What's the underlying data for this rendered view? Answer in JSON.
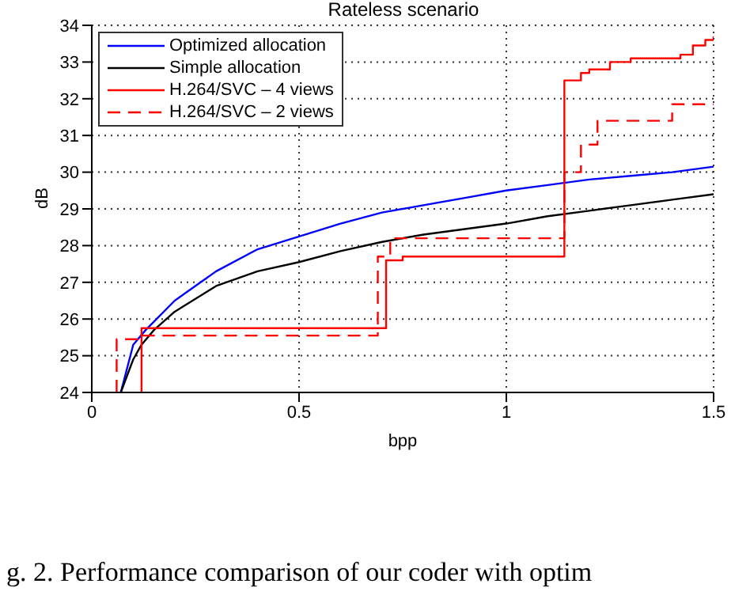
{
  "chart_data": {
    "type": "line",
    "title": "Rateless scenario",
    "xlabel": "bpp",
    "ylabel": "dB",
    "xlim": [
      0,
      1.5
    ],
    "ylim": [
      24,
      34
    ],
    "xticks": [
      0,
      0.5,
      1,
      1.5
    ],
    "yticks": [
      24,
      25,
      26,
      27,
      28,
      29,
      30,
      31,
      32,
      33,
      34
    ],
    "grid": true,
    "legend": "top left",
    "marker": "none",
    "annotations": [
      "g. 2. Performance comparison of our coder with optim"
    ],
    "series": [
      {
        "name": "Optimized allocation",
        "color": "#0000ff",
        "line_style": "solid",
        "x": [
          0.07,
          0.1,
          0.13,
          0.2,
          0.3,
          0.4,
          0.5,
          0.6,
          0.7,
          0.8,
          0.9,
          1.0,
          1.1,
          1.2,
          1.3,
          1.4,
          1.5
        ],
        "values": [
          24,
          25.3,
          25.7,
          26.5,
          27.3,
          27.9,
          28.25,
          28.6,
          28.9,
          29.1,
          29.3,
          29.5,
          29.65,
          29.8,
          29.9,
          30.0,
          30.15
        ]
      },
      {
        "name": "Simple allocation",
        "color": "#000000",
        "line_style": "solid",
        "x": [
          0.07,
          0.08,
          0.1,
          0.12,
          0.15,
          0.2,
          0.3,
          0.4,
          0.5,
          0.6,
          0.7,
          0.8,
          0.9,
          1.0,
          1.1,
          1.2,
          1.3,
          1.4,
          1.5
        ],
        "values": [
          24,
          24.3,
          24.9,
          25.3,
          25.7,
          26.2,
          26.9,
          27.3,
          27.55,
          27.85,
          28.1,
          28.3,
          28.45,
          28.6,
          28.8,
          28.95,
          29.1,
          29.25,
          29.4
        ]
      },
      {
        "name": "H.264/SVC – 4 views",
        "type": "step",
        "color": "#ff0000",
        "line_style": "solid",
        "x": [
          0.12,
          0.12,
          0.71,
          0.75,
          1.14,
          1.18,
          1.2,
          1.25,
          1.3,
          1.42,
          1.45,
          1.48,
          1.5
        ],
        "values": [
          24,
          25.75,
          27.6,
          27.7,
          32.5,
          32.7,
          32.8,
          33.0,
          33.1,
          33.2,
          33.45,
          33.6,
          33.7
        ]
      },
      {
        "name": "H.264/SVC – 2 views",
        "type": "step",
        "color": "#ff0000",
        "line_style": "dashed",
        "x": [
          0.06,
          0.06,
          0.11,
          0.69,
          0.72,
          1.14,
          1.18,
          1.22,
          1.4,
          1.5
        ],
        "values": [
          24,
          25.45,
          25.55,
          27.7,
          28.2,
          30.0,
          30.75,
          31.4,
          31.85,
          31.85
        ]
      }
    ]
  }
}
